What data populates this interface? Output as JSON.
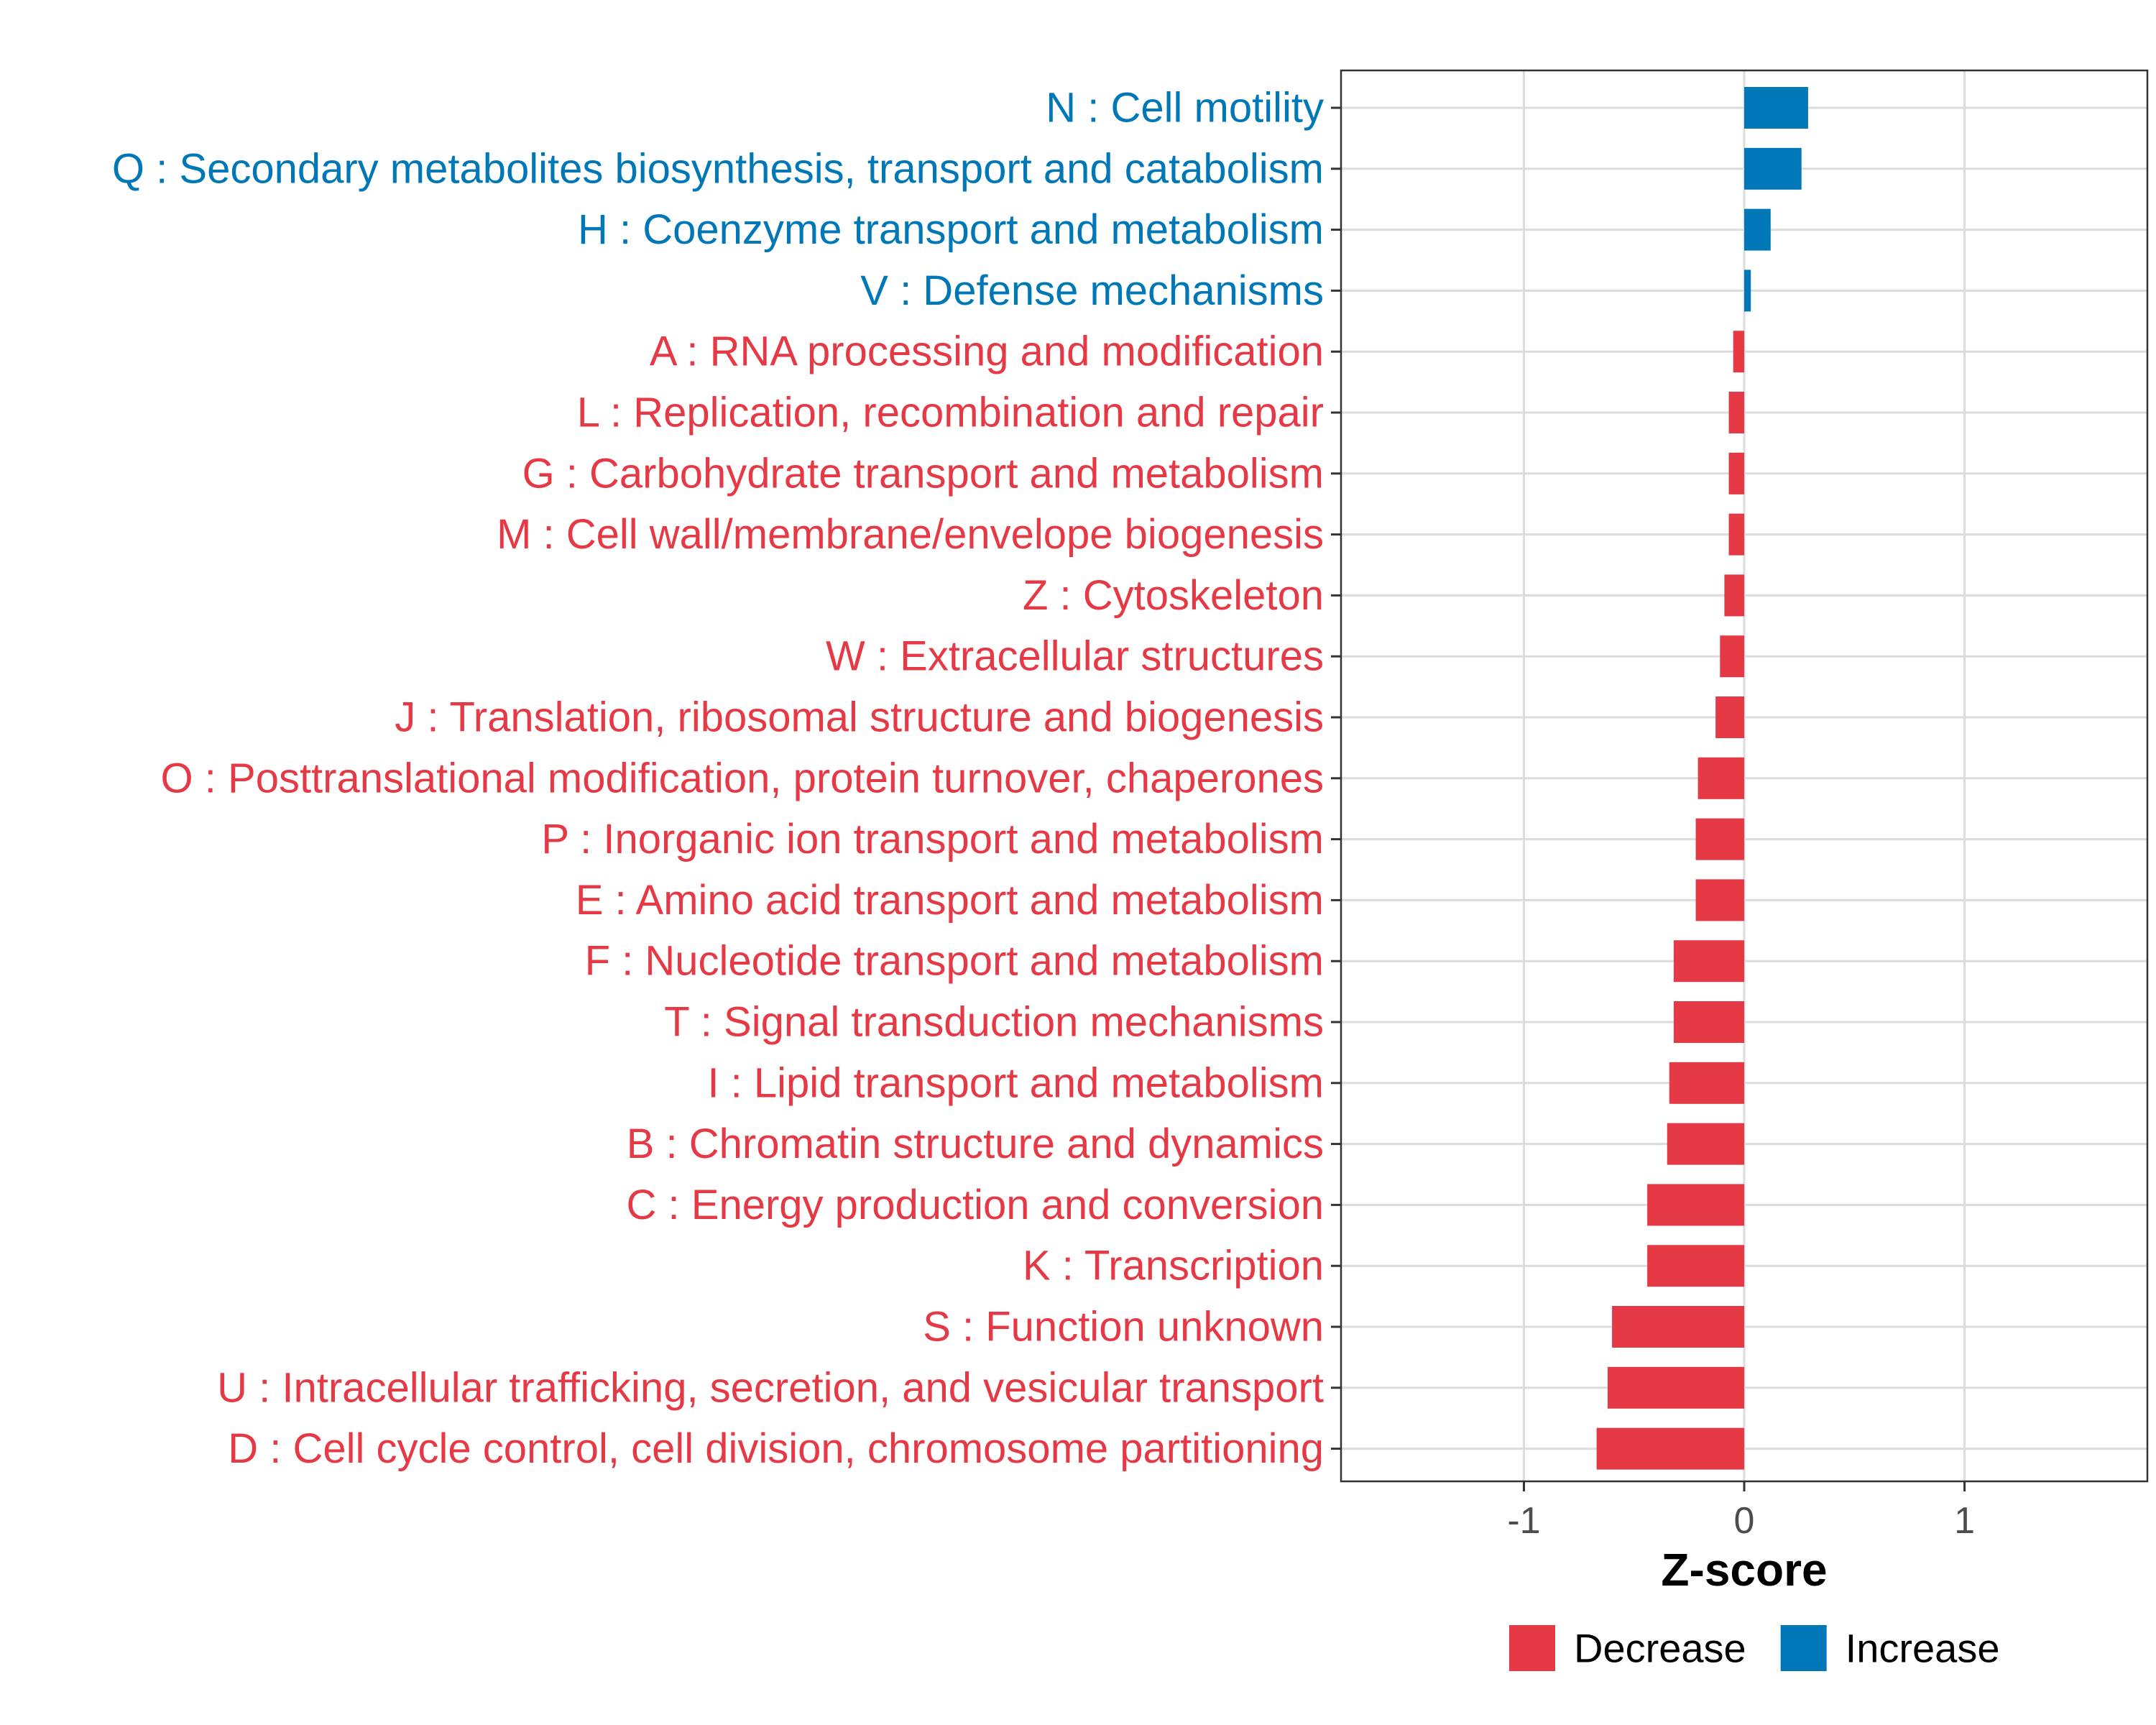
{
  "chart_data": {
    "type": "bar",
    "orientation": "horizontal",
    "title": "",
    "xlabel": "Z-score",
    "ylabel": "",
    "xlim": [
      -1.83,
      1.83
    ],
    "xticks": [
      -1,
      0,
      1
    ],
    "xtick_labels": [
      "-1",
      "0",
      "1"
    ],
    "grid": true,
    "categories": [
      "N : Cell motility",
      "Q : Secondary metabolites biosynthesis, transport and catabolism",
      "H : Coenzyme transport and metabolism",
      "V : Defense mechanisms",
      "A : RNA processing and modification",
      "L : Replication, recombination and repair",
      "G : Carbohydrate transport and metabolism",
      "M : Cell wall/membrane/envelope biogenesis",
      "Z : Cytoskeleton",
      "W : Extracellular structures",
      "J : Translation, ribosomal structure and biogenesis",
      "O : Posttranslational modification, protein turnover, chaperones",
      "P : Inorganic ion transport and metabolism",
      "E : Amino acid transport and metabolism",
      "F : Nucleotide transport and metabolism",
      "T : Signal transduction mechanisms",
      "I : Lipid transport and metabolism",
      "B : Chromatin structure and dynamics",
      "C : Energy production and conversion",
      "K : Transcription",
      "S : Function unknown",
      "U : Intracellular trafficking, secretion, and vesicular transport",
      "D : Cell cycle control, cell division, chromosome partitioning"
    ],
    "values": [
      0.29,
      0.26,
      0.12,
      0.03,
      -0.05,
      -0.07,
      -0.07,
      -0.07,
      -0.09,
      -0.11,
      -0.13,
      -0.21,
      -0.22,
      -0.22,
      -0.32,
      -0.32,
      -0.34,
      -0.35,
      -0.44,
      -0.44,
      -0.6,
      -0.62,
      -0.67
    ],
    "groups": [
      "Increase",
      "Increase",
      "Increase",
      "Increase",
      "Decrease",
      "Decrease",
      "Decrease",
      "Decrease",
      "Decrease",
      "Decrease",
      "Decrease",
      "Decrease",
      "Decrease",
      "Decrease",
      "Decrease",
      "Decrease",
      "Decrease",
      "Decrease",
      "Decrease",
      "Decrease",
      "Decrease",
      "Decrease",
      "Decrease"
    ],
    "legend": {
      "position": "bottom",
      "entries": [
        {
          "label": "Decrease",
          "color": "#E63946"
        },
        {
          "label": "Increase",
          "color": "#0077B6"
        }
      ]
    },
    "colors": {
      "Decrease": "#E63946",
      "Increase": "#0077B6",
      "grid": "#DCDCDC",
      "panel_border": "#333333",
      "tick_text": "#4D4D4D"
    }
  }
}
